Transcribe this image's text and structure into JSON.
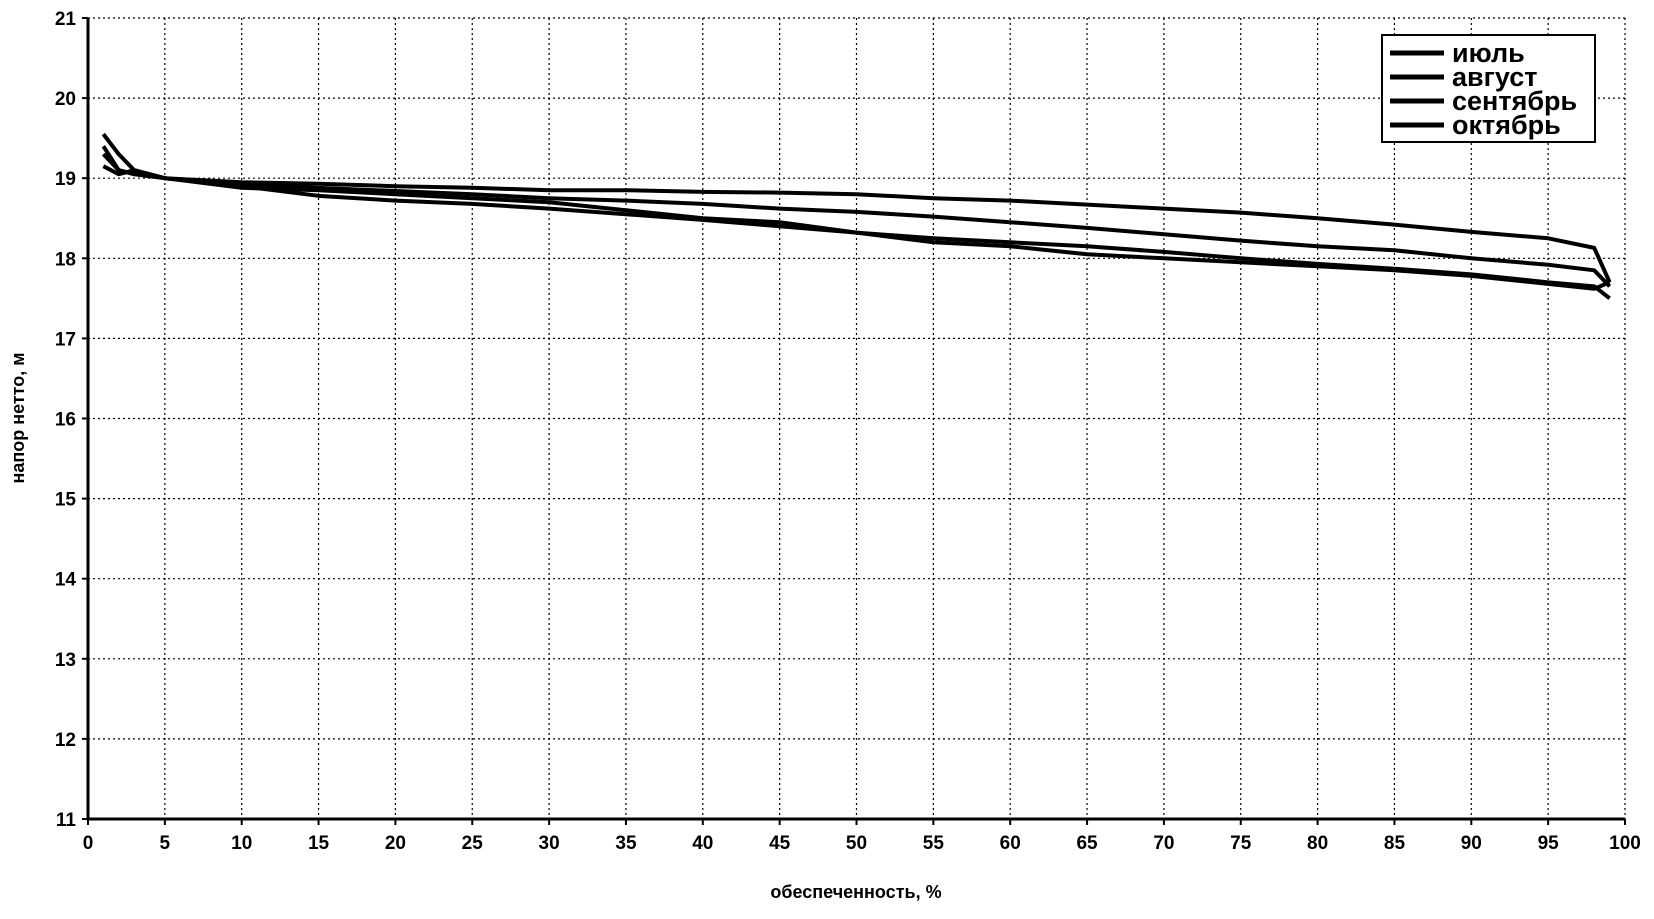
{
  "chart_data": {
    "type": "line",
    "x_label": "обеспеченность, %",
    "y_label": "напор нетто, м",
    "x": [
      1,
      2,
      3,
      5,
      10,
      15,
      20,
      25,
      30,
      35,
      40,
      45,
      50,
      55,
      60,
      65,
      70,
      75,
      80,
      85,
      90,
      95,
      98,
      99
    ],
    "series": [
      {
        "name": "июль",
        "color": "#000000",
        "values": [
          19.4,
          19.1,
          19.05,
          19.0,
          18.95,
          18.93,
          18.9,
          18.88,
          18.85,
          18.85,
          18.83,
          18.82,
          18.8,
          18.75,
          18.72,
          18.67,
          18.62,
          18.57,
          18.5,
          18.42,
          18.33,
          18.25,
          18.13,
          17.7
        ]
      },
      {
        "name": "август",
        "color": "#000000",
        "values": [
          19.55,
          19.3,
          19.1,
          19.0,
          18.92,
          18.88,
          18.84,
          18.8,
          18.75,
          18.72,
          18.68,
          18.62,
          18.58,
          18.52,
          18.45,
          18.38,
          18.3,
          18.22,
          18.15,
          18.1,
          18.0,
          17.92,
          17.85,
          17.65
        ]
      },
      {
        "name": "сентябрь",
        "color": "#000000",
        "values": [
          19.15,
          19.05,
          19.1,
          19.0,
          18.9,
          18.78,
          18.72,
          18.68,
          18.62,
          18.55,
          18.48,
          18.4,
          18.32,
          18.25,
          18.2,
          18.15,
          18.08,
          18.0,
          17.93,
          17.87,
          17.8,
          17.7,
          17.65,
          17.5
        ]
      },
      {
        "name": "октябрь",
        "color": "#000000",
        "values": [
          19.3,
          19.1,
          19.05,
          19.0,
          18.88,
          18.85,
          18.8,
          18.75,
          18.7,
          18.6,
          18.5,
          18.45,
          18.32,
          18.2,
          18.15,
          18.05,
          18.0,
          17.95,
          17.9,
          17.85,
          17.78,
          17.68,
          17.62,
          17.7
        ]
      }
    ],
    "xlim": [
      0,
      100
    ],
    "xticks": [
      0,
      5,
      10,
      15,
      20,
      25,
      30,
      35,
      40,
      45,
      50,
      55,
      60,
      65,
      70,
      75,
      80,
      85,
      90,
      95,
      100
    ],
    "ylim": [
      11,
      21
    ],
    "yticks": [
      11,
      12,
      13,
      14,
      15,
      16,
      17,
      18,
      19,
      20,
      21
    ],
    "grid": true,
    "legend": "top-right"
  }
}
